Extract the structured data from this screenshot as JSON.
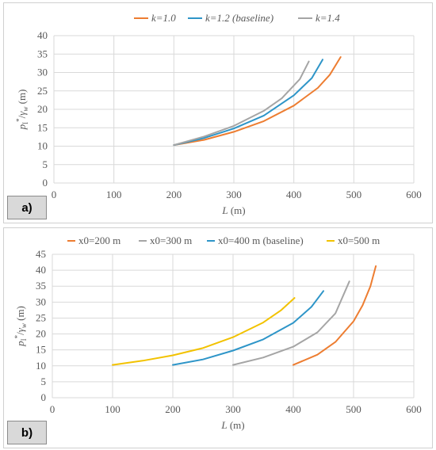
{
  "chart_data": [
    {
      "type": "line",
      "panel_label": "a)",
      "xlabel": "L (m)",
      "ylabel": "p_I*/γ_w (m)",
      "xlim": [
        0,
        600
      ],
      "ylim": [
        0,
        40
      ],
      "x_ticks": [
        "0",
        "100",
        "200",
        "300",
        "400",
        "500",
        "600"
      ],
      "y_ticks": [
        "0",
        "5",
        "10",
        "15",
        "20",
        "25",
        "30",
        "35",
        "40"
      ],
      "grid": true,
      "legend_position": "top",
      "series": [
        {
          "name": "k=1.0",
          "color": "#ed7d31",
          "x": [
            200,
            250,
            300,
            350,
            400,
            440,
            460,
            478
          ],
          "y": [
            10.3,
            11.7,
            13.9,
            16.8,
            21.0,
            25.8,
            29.4,
            34.2
          ]
        },
        {
          "name": "k=1.2 (baseline)",
          "color": "#2e95c8",
          "x": [
            200,
            250,
            300,
            350,
            400,
            430,
            448
          ],
          "y": [
            10.3,
            12.2,
            14.8,
            18.3,
            23.8,
            28.5,
            33.5
          ]
        },
        {
          "name": "k=1.4",
          "color": "#a5a5a5",
          "x": [
            200,
            250,
            300,
            350,
            380,
            410,
            425
          ],
          "y": [
            10.3,
            12.6,
            15.5,
            19.6,
            23.0,
            28.2,
            33.0
          ]
        }
      ]
    },
    {
      "type": "line",
      "panel_label": "b)",
      "xlabel": "L (m)",
      "ylabel": "p_I*/γ_w (m)",
      "xlim": [
        0,
        600
      ],
      "ylim": [
        0,
        45
      ],
      "x_ticks": [
        "0",
        "100",
        "200",
        "300",
        "400",
        "500",
        "600"
      ],
      "y_ticks": [
        "0",
        "5",
        "10",
        "15",
        "20",
        "25",
        "30",
        "35",
        "40",
        "45"
      ],
      "grid": true,
      "legend_position": "top",
      "series": [
        {
          "name": "x0=200 m",
          "color": "#ed7d31",
          "x": [
            400,
            440,
            470,
            500,
            515,
            528,
            537
          ],
          "y": [
            10.3,
            13.5,
            17.5,
            24.0,
            29.0,
            35.0,
            41.3
          ]
        },
        {
          "name": "x0=300 m",
          "color": "#a5a5a5",
          "x": [
            300,
            350,
            400,
            440,
            470,
            493
          ],
          "y": [
            10.3,
            12.6,
            16.0,
            20.5,
            26.5,
            36.5
          ]
        },
        {
          "name": "x0=400 m (baseline)",
          "color": "#2e95c8",
          "x": [
            200,
            250,
            300,
            350,
            400,
            430,
            450
          ],
          "y": [
            10.3,
            12.0,
            14.8,
            18.3,
            23.5,
            28.5,
            33.5
          ]
        },
        {
          "name": "x0=500 m",
          "color": "#f2c200",
          "x": [
            100,
            150,
            200,
            250,
            300,
            350,
            380,
            402
          ],
          "y": [
            10.3,
            11.6,
            13.3,
            15.6,
            19.0,
            23.6,
            27.5,
            31.3
          ]
        }
      ]
    }
  ]
}
